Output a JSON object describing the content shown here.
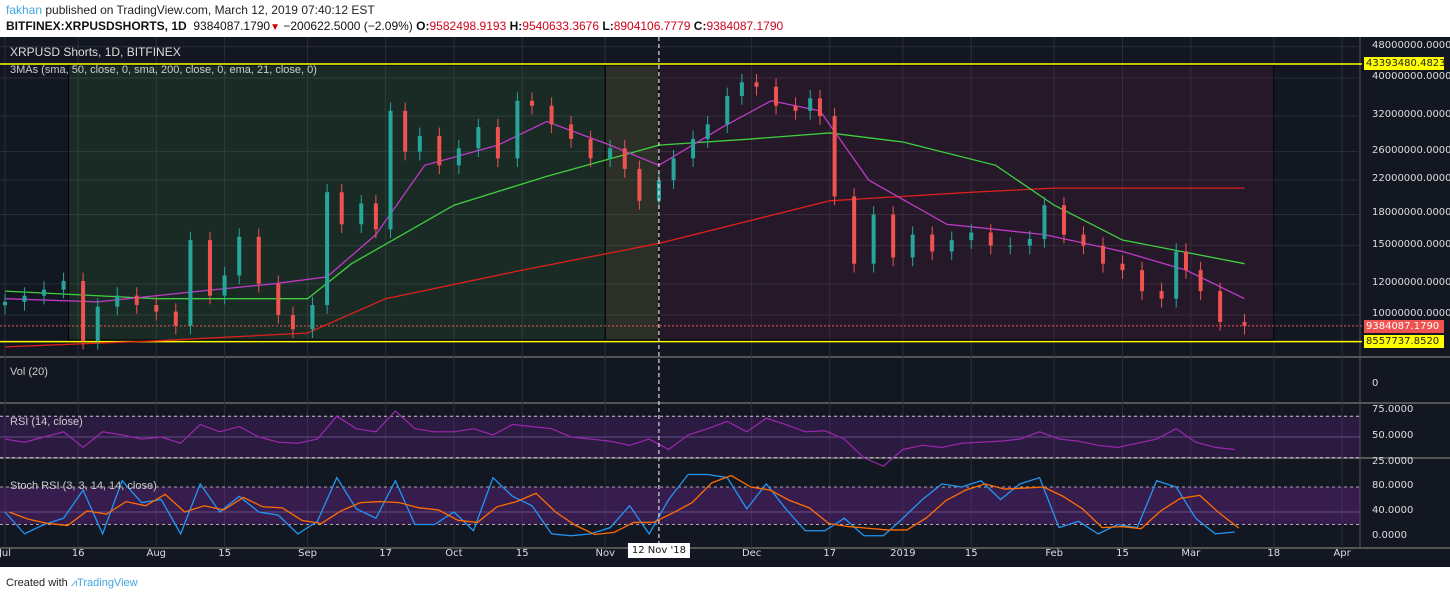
{
  "header": {
    "author": "fakhan",
    "published": "published on TradingView.com, March 12, 2019 07:40:12 EST",
    "symbol": "BITFINEX:XRPUSDSHORTS, 1D",
    "last": "9384087.1790",
    "change": "−200622.5000 (−2.09%)",
    "o_label": "O:",
    "o": "9582498.9193",
    "h_label": "H:",
    "h": "9540633.3676",
    "l_label": "L:",
    "l": "8904106.7779",
    "c_label": "C:",
    "c": "9384087.1790"
  },
  "footer": {
    "created_with": "Created with",
    "brand": "TradingView"
  },
  "colors": {
    "up": "#26a69a",
    "down": "#ef5350",
    "sma50": "#3fcf3f",
    "sma200": "#e0201a",
    "ema21": "#c03ac8",
    "rsi": "#9c27b0",
    "stoch_k": "#2196f3",
    "stoch_d": "#ff6d00",
    "level_line": "#ffff00",
    "background": "#131722"
  },
  "chart_data": [
    {
      "type": "candlestick",
      "title": "XRPUSD Shorts, 1D, BITFINEX",
      "indicator": "3MAs (sma, 50, close, 0, sma, 200, close, 0, ema, 21, close, 0)",
      "y_scale": "log",
      "ylim": [
        8000000,
        50000000
      ],
      "y_ticks": [
        "48000000.0000",
        "40000000.0000",
        "32000000.0000",
        "26000000.0000",
        "22000000.0000",
        "18000000.0000",
        "15000000.0000",
        "12000000.0000",
        "10000000.0000"
      ],
      "y_tick_values": [
        48000000,
        40000000,
        32000000,
        26000000,
        22000000,
        18000000,
        15000000,
        12000000,
        10000000
      ],
      "levels": [
        {
          "value": 43393480.4823,
          "label": "43393480.4823"
        },
        {
          "value": 8557737.852,
          "label": "8557737.8520"
        }
      ],
      "last_price": {
        "value": 9384087.179,
        "label": "9384087.1790"
      },
      "closes": [
        [
          "2018-07-01",
          10.8
        ],
        [
          "2018-07-05",
          11.2
        ],
        [
          "2018-07-09",
          11.6
        ],
        [
          "2018-07-13",
          12.2
        ],
        [
          "2018-07-17",
          8.6
        ],
        [
          "2018-07-20",
          10.5
        ],
        [
          "2018-07-24",
          11.2
        ],
        [
          "2018-07-28",
          10.6
        ],
        [
          "2018-08-01",
          10.2
        ],
        [
          "2018-08-05",
          9.4
        ],
        [
          "2018-08-08",
          15.5
        ],
        [
          "2018-08-12",
          11.2
        ],
        [
          "2018-08-15",
          12.6
        ],
        [
          "2018-08-18",
          15.8
        ],
        [
          "2018-08-22",
          12.0
        ],
        [
          "2018-08-26",
          10.0
        ],
        [
          "2018-08-29",
          9.2
        ],
        [
          "2018-09-02",
          10.6
        ],
        [
          "2018-09-05",
          20.5
        ],
        [
          "2018-09-08",
          17.0
        ],
        [
          "2018-09-12",
          19.2
        ],
        [
          "2018-09-15",
          16.5
        ],
        [
          "2018-09-18",
          33.0
        ],
        [
          "2018-09-21",
          26.0
        ],
        [
          "2018-09-24",
          28.5
        ],
        [
          "2018-09-28",
          24.0
        ],
        [
          "2018-10-02",
          26.5
        ],
        [
          "2018-10-06",
          30.0
        ],
        [
          "2018-10-10",
          25.0
        ],
        [
          "2018-10-14",
          35.0
        ],
        [
          "2018-10-17",
          34.0
        ],
        [
          "2018-10-21",
          30.5
        ],
        [
          "2018-10-25",
          28.0
        ],
        [
          "2018-10-29",
          25.0
        ],
        [
          "2018-11-02",
          26.5
        ],
        [
          "2018-11-05",
          23.5
        ],
        [
          "2018-11-08",
          19.5
        ],
        [
          "2018-11-12",
          22.0
        ],
        [
          "2018-11-15",
          25.0
        ],
        [
          "2018-11-19",
          28.0
        ],
        [
          "2018-11-22",
          30.5
        ],
        [
          "2018-11-26",
          36.0
        ],
        [
          "2018-11-29",
          39.0
        ],
        [
          "2018-12-02",
          38.0
        ],
        [
          "2018-12-06",
          34.0
        ],
        [
          "2018-12-10",
          33.0
        ],
        [
          "2018-12-13",
          35.5
        ],
        [
          "2018-12-15",
          32.0
        ],
        [
          "2018-12-18",
          20.0
        ],
        [
          "2018-12-22",
          13.5
        ],
        [
          "2018-12-26",
          18.0
        ],
        [
          "2018-12-30",
          14.0
        ],
        [
          "2019-01-03",
          16.0
        ],
        [
          "2019-01-07",
          14.5
        ],
        [
          "2019-01-11",
          15.5
        ],
        [
          "2019-01-15",
          16.2
        ],
        [
          "2019-01-19",
          15.0
        ],
        [
          "2019-01-23",
          15.0
        ],
        [
          "2019-01-27",
          15.6
        ],
        [
          "2019-01-30",
          19.0
        ],
        [
          "2019-02-03",
          16.0
        ],
        [
          "2019-02-07",
          15.0
        ],
        [
          "2019-02-11",
          13.5
        ],
        [
          "2019-02-15",
          13.0
        ],
        [
          "2019-02-19",
          11.5
        ],
        [
          "2019-02-23",
          11.0
        ],
        [
          "2019-02-26",
          14.5
        ],
        [
          "2019-02-28",
          13.0
        ],
        [
          "2019-03-03",
          11.5
        ],
        [
          "2019-03-07",
          9.6
        ],
        [
          "2019-03-12",
          9.384
        ]
      ],
      "close_unit": "millions",
      "sma50": [
        [
          "2018-07-01",
          11.5
        ],
        [
          "2018-08-01",
          11.0
        ],
        [
          "2018-09-01",
          11.0
        ],
        [
          "2018-09-10",
          13.5
        ],
        [
          "2018-10-01",
          19.0
        ],
        [
          "2018-10-20",
          22.5
        ],
        [
          "2018-11-12",
          27.0
        ],
        [
          "2018-12-01",
          28.0
        ],
        [
          "2018-12-17",
          29.0
        ],
        [
          "2019-01-01",
          27.5
        ],
        [
          "2019-01-20",
          24.0
        ],
        [
          "2019-02-01",
          19.0
        ],
        [
          "2019-02-15",
          15.5
        ],
        [
          "2019-03-12",
          13.5
        ]
      ],
      "sma200": [
        [
          "2018-07-01",
          8.3
        ],
        [
          "2018-08-01",
          8.6
        ],
        [
          "2018-09-01",
          9.0
        ],
        [
          "2018-09-17",
          11.0
        ],
        [
          "2018-10-15",
          13.0
        ],
        [
          "2018-11-12",
          15.2
        ],
        [
          "2018-12-17",
          19.5
        ],
        [
          "2019-01-15",
          20.5
        ],
        [
          "2019-02-01",
          21.0
        ],
        [
          "2019-03-12",
          21.0
        ]
      ],
      "ema21": [
        [
          "2018-07-01",
          11.0
        ],
        [
          "2018-07-20",
          10.8
        ],
        [
          "2018-08-10",
          11.5
        ],
        [
          "2018-08-25",
          12.0
        ],
        [
          "2018-09-05",
          12.5
        ],
        [
          "2018-09-15",
          16.0
        ],
        [
          "2018-09-25",
          24.0
        ],
        [
          "2018-10-10",
          27.0
        ],
        [
          "2018-10-20",
          31.0
        ],
        [
          "2018-11-02",
          27.0
        ],
        [
          "2018-11-12",
          24.0
        ],
        [
          "2018-11-25",
          30.0
        ],
        [
          "2018-12-05",
          35.0
        ],
        [
          "2018-12-15",
          33.0
        ],
        [
          "2018-12-25",
          22.0
        ],
        [
          "2019-01-10",
          17.0
        ],
        [
          "2019-01-30",
          16.0
        ],
        [
          "2019-02-15",
          14.5
        ],
        [
          "2019-02-28",
          13.0
        ],
        [
          "2019-03-12",
          11.0
        ]
      ],
      "x_ticks": [
        [
          "2018-07-01",
          "Jul"
        ],
        [
          "2018-07-16",
          "16"
        ],
        [
          "2018-08-01",
          "Aug"
        ],
        [
          "2018-08-15",
          "15"
        ],
        [
          "2018-09-01",
          "Sep"
        ],
        [
          "2018-09-17",
          "17"
        ],
        [
          "2018-10-01",
          "Oct"
        ],
        [
          "2018-10-15",
          "15"
        ],
        [
          "2018-11-01",
          "Nov"
        ],
        [
          "2018-12-01",
          "Dec"
        ],
        [
          "2018-12-17",
          "17"
        ],
        [
          "2019-01-01",
          "2019"
        ],
        [
          "2019-01-15",
          "15"
        ],
        [
          "2019-02-01",
          "Feb"
        ],
        [
          "2019-02-15",
          "15"
        ],
        [
          "2019-03-01",
          "Mar"
        ],
        [
          "2019-03-18",
          "18"
        ],
        [
          "2019-04-01",
          "Apr"
        ]
      ],
      "crosshair": {
        "date": "2018-11-12",
        "label": "12 Nov '18"
      }
    },
    {
      "type": "bar",
      "title": "Vol (20)",
      "y_ticks": [
        "0"
      ]
    },
    {
      "type": "line",
      "title": "RSI (14, close)",
      "ylim": [
        20,
        80
      ],
      "y_ticks": [
        "75.0000",
        "50.0000",
        "25.0000"
      ],
      "y_tick_values": [
        75,
        50,
        25
      ],
      "bands": [
        30,
        70
      ],
      "start": "2018-07-01",
      "interval_days": 4,
      "values": [
        48,
        45,
        50,
        55,
        40,
        55,
        52,
        48,
        50,
        44,
        62,
        55,
        60,
        50,
        45,
        44,
        48,
        70,
        58,
        55,
        75,
        58,
        55,
        55,
        58,
        52,
        62,
        60,
        58,
        50,
        48,
        46,
        42,
        48,
        38,
        52,
        58,
        65,
        55,
        68,
        62,
        55,
        56,
        48,
        30,
        22,
        38,
        42,
        40,
        44,
        45,
        46,
        48,
        55,
        48,
        46,
        42,
        40,
        44,
        48,
        58,
        45,
        40,
        38
      ]
    },
    {
      "type": "line",
      "title": "Stoch RSI (3, 3, 14, 14, close)",
      "ylim": [
        -5,
        105
      ],
      "y_ticks": [
        "80.0000",
        "40.0000",
        "0.0000"
      ],
      "y_tick_values": [
        80,
        40,
        0
      ],
      "bands": [
        20,
        80
      ],
      "start": "2018-07-01",
      "interval_days": 4,
      "k": [
        40,
        5,
        20,
        30,
        75,
        5,
        90,
        55,
        60,
        5,
        85,
        40,
        65,
        40,
        35,
        5,
        25,
        95,
        45,
        30,
        90,
        20,
        20,
        40,
        10,
        95,
        65,
        50,
        5,
        2,
        5,
        15,
        50,
        5,
        60,
        100,
        100,
        95,
        45,
        85,
        45,
        10,
        10,
        30,
        2,
        2,
        30,
        60,
        85,
        80,
        90,
        60,
        85,
        95,
        15,
        25,
        5,
        20,
        15,
        90,
        80,
        30,
        5,
        8
      ]
    }
  ]
}
